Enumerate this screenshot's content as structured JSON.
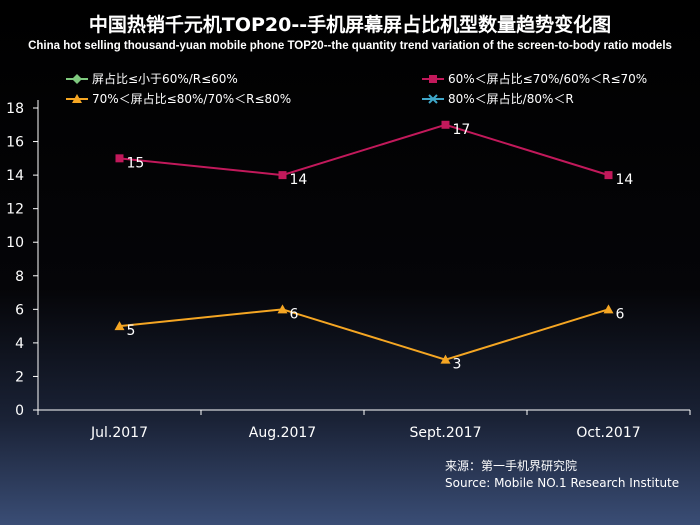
{
  "title": "中国热销千元机TOP20--手机屏幕屏占比机型数量趋势变化图",
  "subtitle": "China hot selling thousand-yuan mobile phone TOP20--the quantity trend variation of the screen-to-body ratio models",
  "source_line1": "来源：第一手机界研究院",
  "source_line2": "Source: Mobile NO.1 Research Institute",
  "chart_data": {
    "type": "line",
    "categories": [
      "Jul.2017",
      "Aug.2017",
      "Sept.2017",
      "Oct.2017"
    ],
    "ylim": [
      0,
      18
    ],
    "yticks": [
      0,
      2,
      4,
      6,
      8,
      10,
      12,
      14,
      16,
      18
    ],
    "grid": false,
    "legend_position": "top",
    "series": [
      {
        "name": "屏占比≤小于60%/R≤60%",
        "values": [
          null,
          null,
          null,
          null
        ],
        "color": "#7fc97f",
        "marker": "diamond"
      },
      {
        "name": "60%＜屏占比≤70%/60%＜R≤70%",
        "values": [
          15,
          14,
          17,
          14
        ],
        "color": "#c2195b",
        "marker": "square"
      },
      {
        "name": "70%＜屏占比≤80%/70%＜R≤80%",
        "values": [
          5,
          6,
          3,
          6
        ],
        "color": "#f5a623",
        "marker": "triangle"
      },
      {
        "name": "80%＜屏占比/80%＜R",
        "values": [
          null,
          null,
          null,
          null
        ],
        "color": "#3fa7c9",
        "marker": "x"
      }
    ],
    "data_labels": true
  }
}
